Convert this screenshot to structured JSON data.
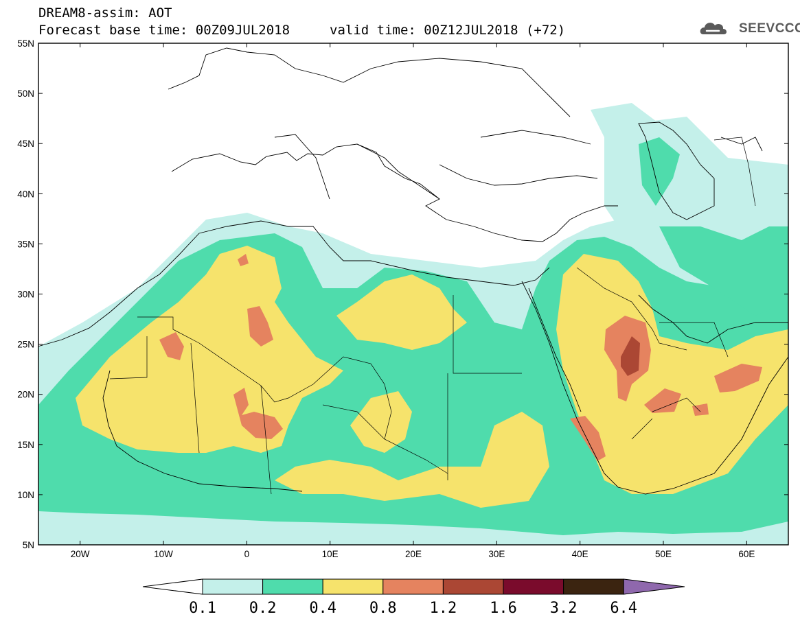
{
  "header": {
    "title": "DREAM8-assim: AOT",
    "base_time": "Forecast base time: 00Z09JUL2018",
    "valid_time": "valid time: 00Z12JUL2018 (+72)",
    "logo": "SEEVCCC"
  },
  "map": {
    "lon_range": [
      -25,
      65
    ],
    "lat_range": [
      5,
      55
    ],
    "lat_labels": [
      "55N",
      "50N",
      "45N",
      "40N",
      "35N",
      "30N",
      "25N",
      "20N",
      "15N",
      "10N",
      "5N"
    ],
    "lon_labels": [
      "20W",
      "10W",
      "0",
      "10E",
      "20E",
      "30E",
      "40E",
      "50E",
      "60E"
    ]
  },
  "legend": {
    "levels": [
      "0.1",
      "0.2",
      "0.4",
      "0.8",
      "1.2",
      "1.6",
      "3.2",
      "6.4"
    ],
    "colors": [
      "#ffffff",
      "#c4f0ea",
      "#4fdcac",
      "#f6e36c",
      "#e5835f",
      "#ab4734",
      "#7a0b2c",
      "#3b2410",
      "#8f68ad"
    ]
  }
}
